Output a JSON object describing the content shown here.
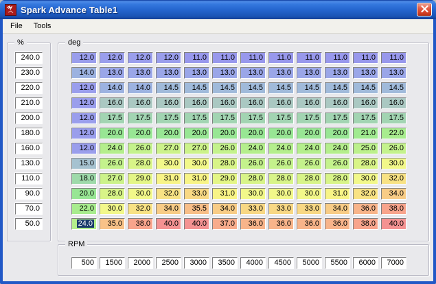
{
  "titlebar": {
    "title": "Spark Advance Table1",
    "icon": "megasquirt-red-icon",
    "close_icon": "close-x"
  },
  "menu": {
    "items": [
      "File",
      "Tools"
    ]
  },
  "colors": {
    "titlebar_top": "#4f8de8",
    "titlebar_bottom": "#123f96",
    "window_border": "#2158c6",
    "close_button": "#d8432a",
    "client_bg": "#e9e9ec",
    "selection_bg": "#1a3a6b",
    "selection_fg": "#ffffff"
  },
  "table": {
    "y_axis": {
      "label": "%",
      "values": [
        "240.0",
        "230.0",
        "220.0",
        "210.0",
        "200.0",
        "180.0",
        "160.0",
        "130.0",
        "110.0",
        "90.0",
        "70.0",
        "50.0"
      ]
    },
    "x_axis": {
      "label": "RPM",
      "values": [
        "500",
        "1500",
        "2000",
        "2500",
        "3000",
        "3500",
        "4000",
        "4500",
        "5000",
        "5500",
        "6000",
        "7000"
      ]
    },
    "grid": {
      "label": "deg",
      "rows": [
        [
          "12.0",
          "12.0",
          "12.0",
          "12.0",
          "11.0",
          "11.0",
          "11.0",
          "11.0",
          "11.0",
          "11.0",
          "11.0",
          "11.0"
        ],
        [
          "14.0",
          "13.0",
          "13.0",
          "13.0",
          "13.0",
          "13.0",
          "13.0",
          "13.0",
          "13.0",
          "13.0",
          "13.0",
          "13.0"
        ],
        [
          "12.0",
          "14.0",
          "14.0",
          "14.5",
          "14.5",
          "14.5",
          "14.5",
          "14.5",
          "14.5",
          "14.5",
          "14.5",
          "14.5"
        ],
        [
          "12.0",
          "16.0",
          "16.0",
          "16.0",
          "16.0",
          "16.0",
          "16.0",
          "16.0",
          "16.0",
          "16.0",
          "16.0",
          "16.0"
        ],
        [
          "12.0",
          "17.5",
          "17.5",
          "17.5",
          "17.5",
          "17.5",
          "17.5",
          "17.5",
          "17.5",
          "17.5",
          "17.5",
          "17.5"
        ],
        [
          "12.0",
          "20.0",
          "20.0",
          "20.0",
          "20.0",
          "20.0",
          "20.0",
          "20.0",
          "20.0",
          "20.0",
          "21.0",
          "22.0"
        ],
        [
          "12.0",
          "24.0",
          "26.0",
          "27.0",
          "27.0",
          "26.0",
          "24.0",
          "24.0",
          "24.0",
          "24.0",
          "25.0",
          "26.0"
        ],
        [
          "15.0",
          "26.0",
          "28.0",
          "30.0",
          "30.0",
          "28.0",
          "26.0",
          "26.0",
          "26.0",
          "26.0",
          "28.0",
          "30.0"
        ],
        [
          "18.0",
          "27.0",
          "29.0",
          "31.0",
          "31.0",
          "29.0",
          "28.0",
          "28.0",
          "28.0",
          "28.0",
          "30.0",
          "32.0"
        ],
        [
          "20.0",
          "28.0",
          "30.0",
          "32.0",
          "33.0",
          "31.0",
          "30.0",
          "30.0",
          "30.0",
          "31.0",
          "32.0",
          "34.0"
        ],
        [
          "22.0",
          "30.0",
          "32.0",
          "34.0",
          "35.5",
          "34.0",
          "33.0",
          "33.0",
          "33.0",
          "34.0",
          "36.0",
          "38.0"
        ],
        [
          "24.0",
          "35.0",
          "38.0",
          "40.0",
          "40.0",
          "37.0",
          "36.0",
          "36.0",
          "36.0",
          "36.0",
          "38.0",
          "40.0"
        ]
      ]
    },
    "selected_cell": {
      "row": 11,
      "col": 0
    },
    "value_colors": {
      "11.0": "#9898ec",
      "12.0": "#9a9eec",
      "13.0": "#9aa6e8",
      "14.0": "#9cb2e0",
      "14.5": "#a0bada",
      "15.0": "#a6c2d0",
      "16.0": "#aac8c2",
      "17.5": "#a2d4b2",
      "18.0": "#9edaaa",
      "20.0": "#98e694",
      "21.0": "#a0ea90",
      "22.0": "#a8ec8e",
      "24.0": "#b4ee8c",
      "25.0": "#bcf08c",
      "26.0": "#c4f28c",
      "27.0": "#ccf28a",
      "28.0": "#d8f488",
      "29.0": "#e4f686",
      "30.0": "#f2f88a",
      "31.0": "#f8f486",
      "32.0": "#f8e284",
      "33.0": "#f8d884",
      "34.0": "#f8cc86",
      "35.0": "#f8c288",
      "35.5": "#f8be88",
      "36.0": "#f8b48a",
      "37.0": "#f8ac8c",
      "38.0": "#f8a48c",
      "40.0": "#f49292"
    }
  }
}
